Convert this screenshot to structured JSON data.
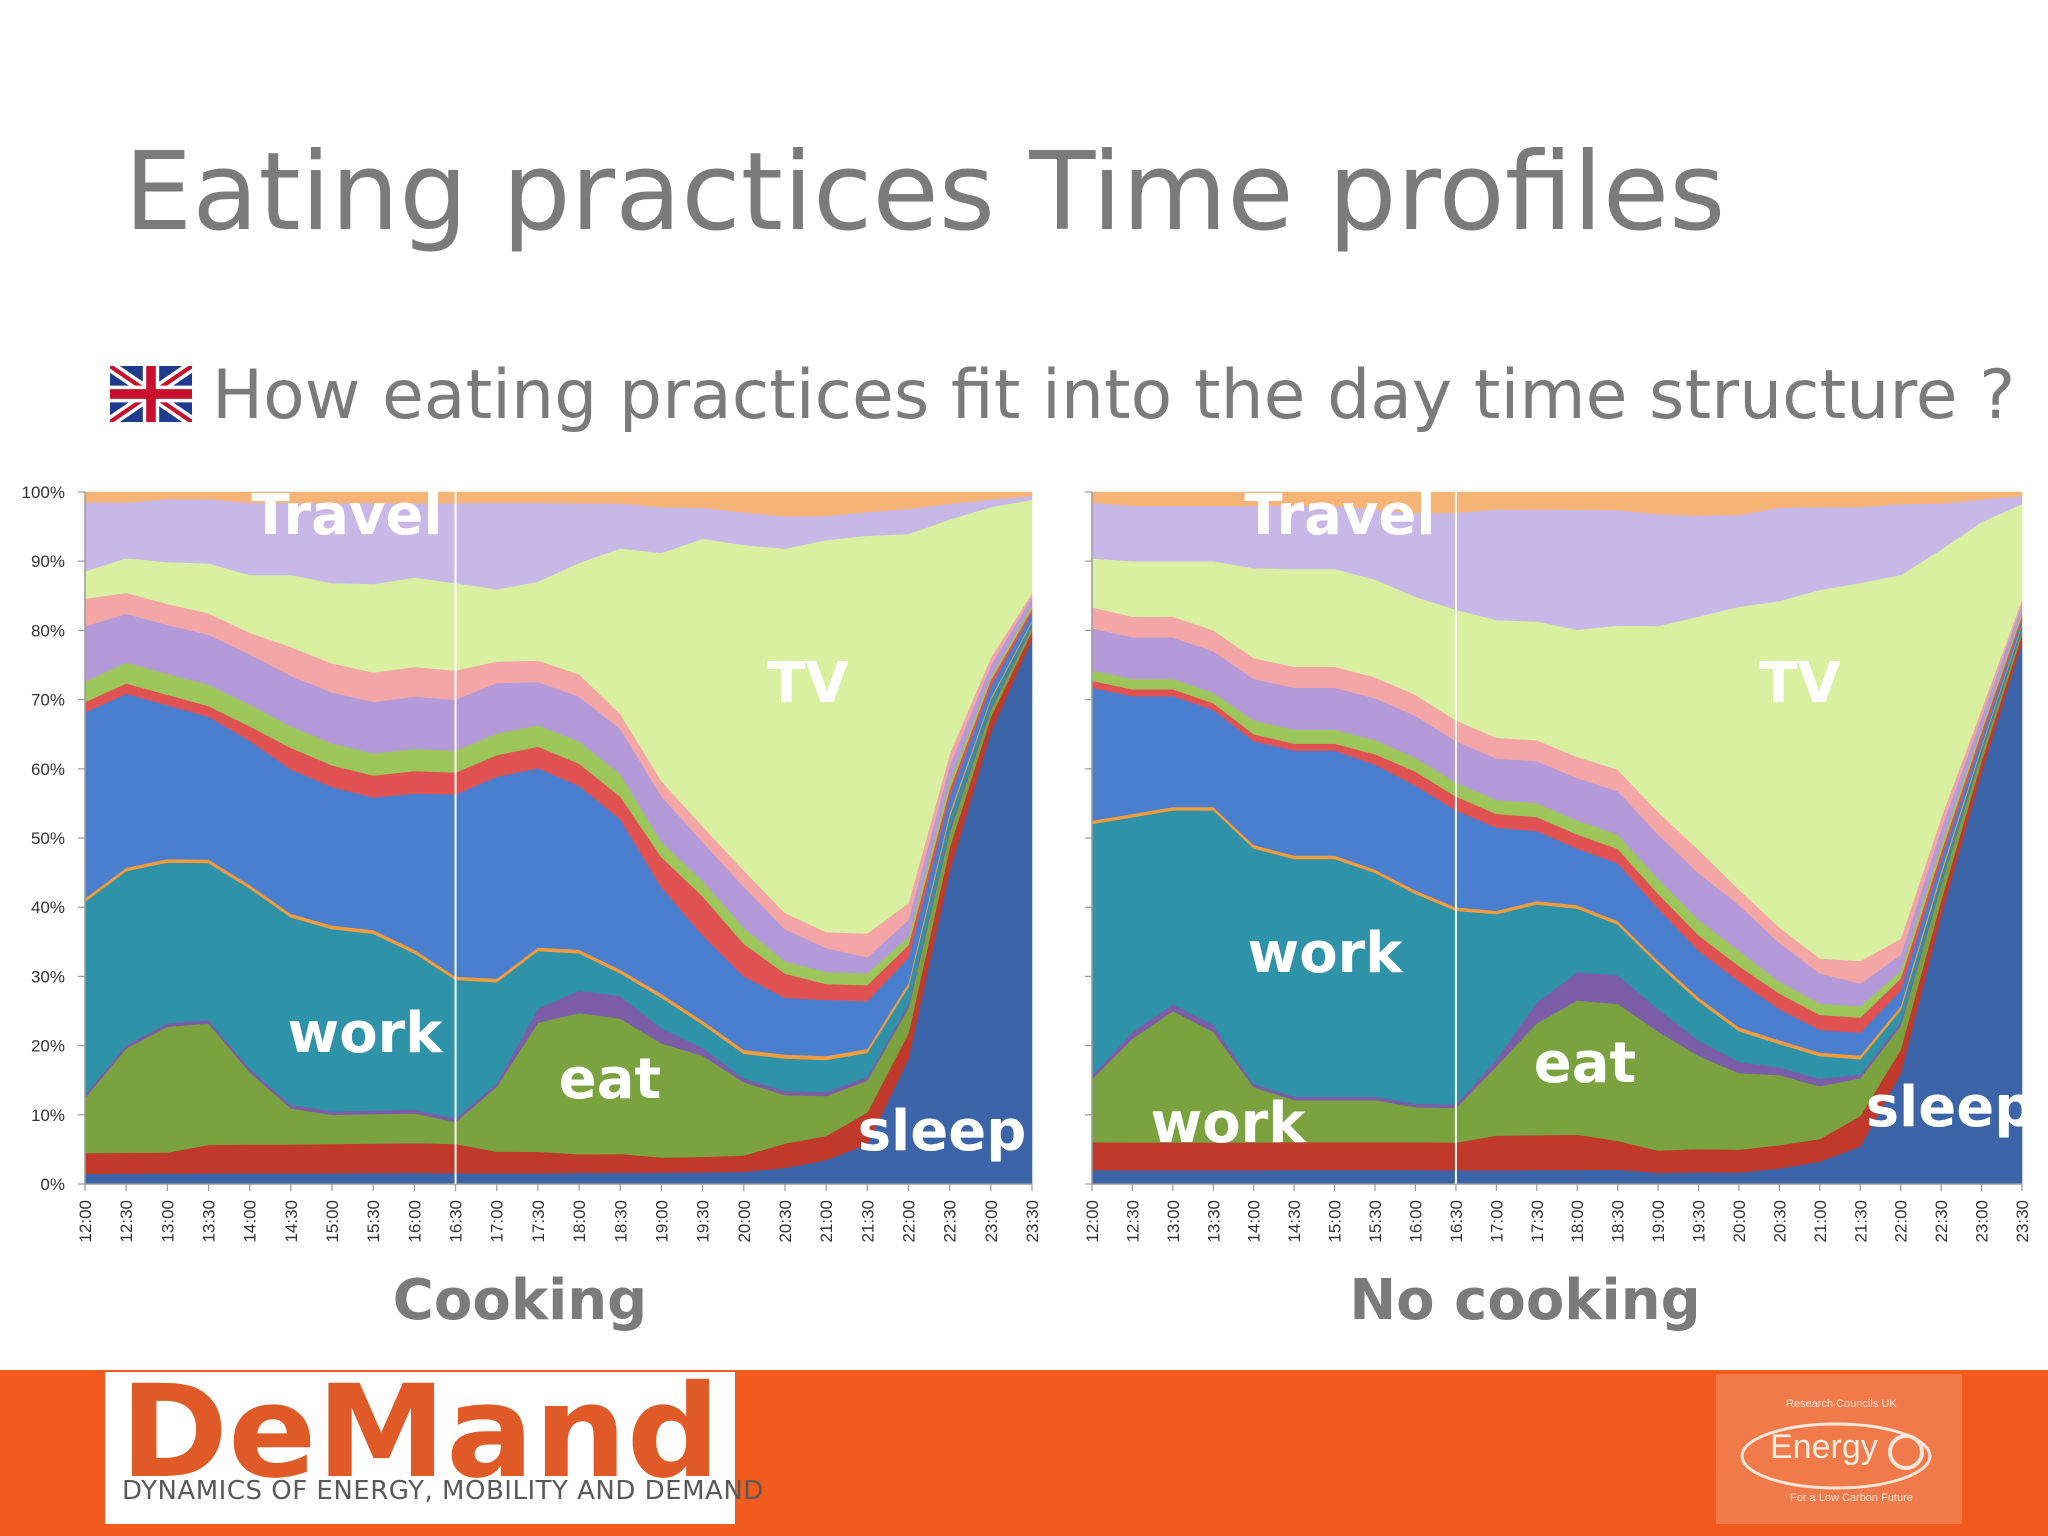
{
  "page": {
    "title": "Eating practices Time profiles",
    "subtitle": "How eating practices fit into the day time structure ?",
    "logo_word": "DeMand",
    "logo_tagline": "DYNAMICS OF ENERGY, MOBILITY AND DEMAND",
    "partner_logo": {
      "word": "Energy",
      "top_text": "Research Councils UK",
      "bottom_text": "For a Low Carbon Future"
    }
  },
  "colors": {
    "title_text": "#7b7b7b",
    "footer_bar": "#f25a1e",
    "label_text": "#ffffff"
  },
  "icons": {
    "flag": "union-jack-flag-icon",
    "logo": "demand-logo",
    "partner": "energy-logo"
  },
  "chart_data": [
    {
      "type": "area",
      "title": "Cooking",
      "stacked": true,
      "ylim": [
        0,
        100
      ],
      "y_ticks": [
        "0%",
        "10%",
        "20%",
        "30%",
        "40%",
        "50%",
        "60%",
        "70%",
        "80%",
        "90%",
        "100%"
      ],
      "x": [
        "12:00",
        "12:30",
        "13:00",
        "13:30",
        "14:00",
        "14:30",
        "15:00",
        "15:30",
        "16:00",
        "16:30",
        "17:00",
        "17:30",
        "18:00",
        "18:30",
        "19:00",
        "19:30",
        "20:00",
        "20:30",
        "21:00",
        "21:30",
        "22:00",
        "22:30",
        "23:00",
        "23:30"
      ],
      "marker_at": "16:30",
      "series": [
        {
          "color": "#3c64a8",
          "values": [
            1.5,
            1.5,
            1.5,
            1.5,
            1.5,
            1.5,
            1.5,
            1.5,
            1.5,
            1.5,
            1.5,
            1.5,
            1.5,
            1.5,
            1.5,
            1.5,
            1.5,
            2,
            3,
            5,
            15,
            40,
            60,
            70
          ]
        },
        {
          "color": "#c0392b",
          "values": [
            3,
            3,
            3,
            4,
            4,
            4,
            4,
            4,
            4,
            4,
            3,
            3,
            2.5,
            2.5,
            2,
            2,
            2,
            3,
            3,
            4,
            3,
            3,
            2,
            1
          ]
        },
        {
          "color": "#7aa33f",
          "values": [
            8,
            15,
            18,
            17,
            10,
            5,
            4,
            4,
            4,
            3,
            9,
            18,
            19,
            18,
            15,
            13,
            9,
            6,
            5,
            4,
            3,
            2,
            1,
            0.5
          ]
        },
        {
          "color": "#7b5ea7",
          "values": [
            0.5,
            0.5,
            0.5,
            0.5,
            0.5,
            0.5,
            0.5,
            0.5,
            0.5,
            0.5,
            0.5,
            2,
            3,
            3,
            2,
            1,
            0.5,
            0.5,
            0.5,
            0.5,
            0.5,
            0.5,
            0.3,
            0.2
          ]
        },
        {
          "color": "#2e93a8",
          "values": [
            28,
            25,
            23,
            22,
            25,
            26,
            25,
            24,
            21,
            19,
            14,
            8,
            5,
            3,
            4,
            3,
            3,
            4,
            4,
            3,
            2,
            1.5,
            1,
            0.5
          ]
        },
        {
          "color": "#f39c3c",
          "values": [
            0.5,
            0.5,
            0.5,
            0.5,
            0.5,
            0.5,
            0.5,
            0.5,
            0.5,
            0.5,
            0.5,
            0.5,
            0.5,
            0.5,
            0.5,
            0.5,
            0.5,
            0.5,
            0.5,
            0.5,
            0.5,
            0.5,
            0.3,
            0.2
          ]
        },
        {
          "color": "#4a7fd0",
          "values": [
            27,
            25,
            22,
            20,
            20,
            20,
            19,
            18,
            21,
            25,
            28,
            25,
            22,
            20,
            14,
            11,
            9,
            7,
            7,
            6,
            3,
            2,
            1.5,
            1
          ]
        },
        {
          "color": "#e05252",
          "values": [
            1.5,
            1.5,
            1.5,
            1.5,
            2,
            3,
            3,
            3,
            3,
            3,
            3,
            3,
            3,
            3,
            4,
            5,
            4,
            3,
            2,
            2,
            1.5,
            1,
            0.8,
            0.5
          ]
        },
        {
          "color": "#9cc65a",
          "values": [
            3,
            3,
            3,
            3,
            3,
            3,
            3,
            3,
            3,
            3,
            3,
            3,
            3,
            3,
            2,
            2,
            2,
            1.5,
            1.5,
            1.5,
            1,
            1,
            0.5,
            0.5
          ]
        },
        {
          "color": "#b49ad8",
          "values": [
            8,
            7,
            7,
            7,
            7,
            7,
            7,
            7,
            7,
            7,
            7,
            6,
            6,
            6,
            6,
            5,
            5,
            4,
            3,
            2,
            2,
            2,
            1.5,
            1
          ]
        },
        {
          "color": "#f4a6a6",
          "values": [
            4,
            3,
            3,
            3,
            3,
            4,
            4,
            4,
            4,
            4,
            3,
            3,
            3,
            2,
            2,
            2,
            2,
            2,
            2,
            3,
            2,
            1.5,
            1,
            0.5
          ]
        },
        {
          "color": "#d8f0a0",
          "values": [
            4,
            5,
            6,
            7,
            8,
            10,
            11,
            12,
            12,
            12,
            10,
            11,
            15,
            22,
            30,
            37,
            40,
            45,
            49,
            50,
            44,
            30,
            20,
            12
          ]
        },
        {
          "color": "#c8b8e8",
          "values": [
            10,
            8,
            9,
            9,
            10,
            10,
            11,
            11,
            10,
            11,
            12,
            11,
            8,
            6,
            6,
            4,
            4,
            4,
            3,
            3,
            3,
            2,
            1,
            0.5
          ]
        },
        {
          "color": "#f7b477",
          "values": [
            1.5,
            1.5,
            1,
            1,
            1.5,
            1.5,
            1.5,
            1.5,
            1.5,
            1.5,
            1.5,
            1.5,
            1.5,
            1.5,
            2,
            2,
            2.5,
            3,
            3,
            2.5,
            2,
            1.5,
            1,
            0.5
          ]
        }
      ],
      "annotations": [
        "Travel",
        "TV",
        "work",
        "eat",
        "sleep"
      ]
    },
    {
      "type": "area",
      "title": "No cooking",
      "stacked": true,
      "ylim": [
        0,
        100
      ],
      "x": [
        "12:00",
        "12:30",
        "13:00",
        "13:30",
        "14:00",
        "14:30",
        "15:00",
        "15:30",
        "16:00",
        "16:30",
        "17:00",
        "17:30",
        "18:00",
        "18:30",
        "19:00",
        "19:30",
        "20:00",
        "20:30",
        "21:00",
        "21:30",
        "22:00",
        "22:30",
        "23:00",
        "23:30"
      ],
      "marker_at": "16:30",
      "series": [
        {
          "color": "#3c64a8",
          "values": [
            2,
            2,
            2,
            2,
            2,
            2,
            2,
            2,
            2,
            2,
            2,
            2,
            2,
            2,
            1.5,
            1.5,
            1.5,
            2,
            3,
            5,
            14,
            35,
            55,
            68
          ]
        },
        {
          "color": "#c0392b",
          "values": [
            4,
            4,
            4,
            4,
            4,
            4,
            4,
            4,
            4,
            4,
            5,
            5,
            5,
            4,
            3,
            3,
            3,
            3,
            3,
            4,
            3,
            2,
            1.5,
            1
          ]
        },
        {
          "color": "#7aa33f",
          "values": [
            9,
            15,
            19,
            16,
            8,
            6,
            6,
            6,
            5,
            5,
            10,
            16,
            19,
            19,
            16,
            12,
            10,
            9,
            7,
            5,
            3,
            2,
            1,
            0.5
          ]
        },
        {
          "color": "#7b5ea7",
          "values": [
            0.5,
            1,
            1,
            1,
            0.5,
            0.5,
            0.5,
            0.5,
            0.5,
            0.5,
            1,
            3,
            4,
            4,
            3,
            2,
            1.5,
            1,
            1,
            0.5,
            0.5,
            0.3,
            0.3,
            0.2
          ]
        },
        {
          "color": "#2e93a8",
          "values": [
            36,
            31,
            28,
            31,
            34,
            34,
            34,
            32,
            30,
            28,
            21,
            14,
            9,
            7,
            6,
            5,
            4,
            3,
            3,
            2,
            1.5,
            1,
            0.5,
            0.5
          ]
        },
        {
          "color": "#f39c3c",
          "values": [
            0.5,
            0.5,
            0.5,
            0.5,
            0.5,
            0.5,
            0.5,
            0.5,
            0.5,
            0.5,
            0.5,
            0.5,
            0.5,
            0.5,
            0.5,
            0.5,
            0.5,
            0.5,
            0.5,
            0.5,
            0.5,
            0.5,
            0.3,
            0.2
          ]
        },
        {
          "color": "#4a7fd0",
          "values": [
            19,
            17,
            16,
            14,
            15,
            15,
            15,
            15,
            15,
            14,
            12,
            10,
            8,
            8,
            7,
            6,
            6,
            4,
            3,
            3,
            2,
            1.5,
            1,
            0.5
          ]
        },
        {
          "color": "#e05252",
          "values": [
            1,
            1,
            1,
            1,
            1,
            1,
            1,
            1.5,
            2,
            2,
            2,
            2,
            2,
            2,
            2,
            2,
            2,
            2,
            2,
            2,
            1.5,
            1,
            0.8,
            0.5
          ]
        },
        {
          "color": "#9cc65a",
          "values": [
            1.5,
            1.5,
            1.5,
            1.5,
            2,
            2,
            2,
            2,
            2,
            2,
            2,
            2,
            2,
            2,
            2,
            2,
            2,
            1.5,
            1.5,
            1.5,
            1,
            1,
            0.5,
            0.5
          ]
        },
        {
          "color": "#b49ad8",
          "values": [
            6,
            6,
            6,
            6,
            6,
            6,
            6,
            6,
            6,
            6,
            6,
            6,
            6,
            6,
            6,
            6,
            6,
            5,
            4,
            3,
            2,
            2,
            1.5,
            1
          ]
        },
        {
          "color": "#f4a6a6",
          "values": [
            3,
            3,
            3,
            3,
            3,
            3,
            3,
            3,
            3,
            3,
            3,
            3,
            3,
            3,
            3,
            3,
            2,
            2,
            2,
            3,
            2,
            1.5,
            1,
            0.5
          ]
        },
        {
          "color": "#d8f0a0",
          "values": [
            7,
            8,
            8,
            10,
            13,
            14,
            14,
            14,
            14,
            16,
            17,
            17,
            18,
            20,
            25,
            30,
            37,
            42,
            49,
            50,
            46,
            35,
            25,
            12
          ]
        },
        {
          "color": "#c8b8e8",
          "values": [
            8,
            8,
            8,
            8,
            9,
            9,
            9,
            10,
            12,
            14,
            16,
            16,
            17,
            16,
            15,
            13,
            12,
            12,
            11,
            10,
            9,
            6,
            3,
            1
          ]
        },
        {
          "color": "#f7b477",
          "values": [
            1.5,
            2,
            2,
            2,
            2,
            2,
            2,
            2.5,
            3,
            3,
            2.5,
            2.5,
            2.5,
            2.5,
            3,
            3,
            3,
            2,
            2,
            2,
            1.5,
            1.5,
            1,
            0.5
          ]
        }
      ],
      "annotations": [
        "Travel",
        "TV",
        "work",
        "eat",
        "work",
        "sleep"
      ]
    }
  ]
}
